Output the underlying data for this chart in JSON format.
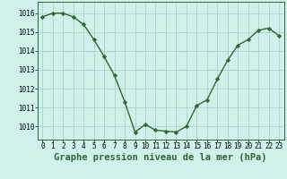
{
  "x": [
    0,
    1,
    2,
    3,
    4,
    5,
    6,
    7,
    8,
    9,
    10,
    11,
    12,
    13,
    14,
    15,
    16,
    17,
    18,
    19,
    20,
    21,
    22,
    23
  ],
  "y": [
    1015.8,
    1016.0,
    1016.0,
    1015.8,
    1015.4,
    1014.6,
    1013.7,
    1012.7,
    1011.3,
    1009.7,
    1010.1,
    1009.8,
    1009.75,
    1009.7,
    1010.0,
    1011.1,
    1011.4,
    1012.5,
    1013.5,
    1014.3,
    1014.6,
    1015.1,
    1015.2,
    1014.8
  ],
  "line_color": "#2d6a2d",
  "marker": "D",
  "marker_size": 2.2,
  "bg_color": "#cff0eb",
  "grid_color": "#aad4ce",
  "xlabel": "Graphe pression niveau de la mer (hPa)",
  "xlabel_fontsize": 7.5,
  "yticks": [
    1010,
    1011,
    1012,
    1013,
    1014,
    1015,
    1016
  ],
  "ylim": [
    1009.3,
    1016.6
  ],
  "xlim": [
    -0.5,
    23.5
  ],
  "xtick_labels": [
    "0",
    "1",
    "2",
    "3",
    "4",
    "5",
    "6",
    "7",
    "8",
    "9",
    "10",
    "11",
    "12",
    "13",
    "14",
    "15",
    "16",
    "17",
    "18",
    "19",
    "20",
    "21",
    "22",
    "23"
  ],
  "tick_fontsize": 5.5,
  "line_width": 1.0
}
